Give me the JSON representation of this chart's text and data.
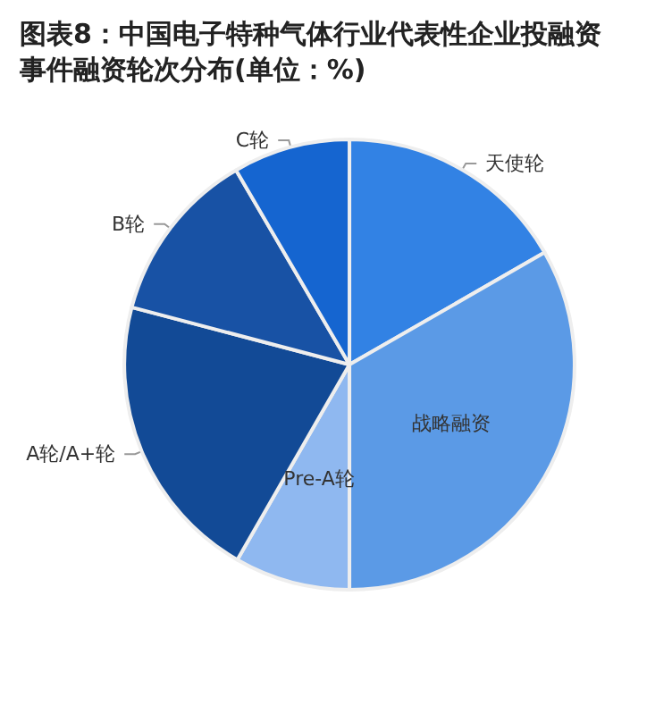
{
  "chart_data": {
    "type": "pie",
    "title": "图表8：中国电子特种气体行业代表性企业投融资事件融资轮次分布(单位：%)",
    "categories": [
      "天使轮",
      "战略融资",
      "Pre-A轮",
      "A轮/A+轮",
      "B轮",
      "C轮"
    ],
    "values": [
      16.7,
      33.3,
      8.3,
      20.8,
      12.5,
      8.4
    ],
    "colors": [
      "#3282e4",
      "#5b9ae6",
      "#8fb8f0",
      "#124a96",
      "#1852a5",
      "#1565d0"
    ],
    "legend": false
  }
}
